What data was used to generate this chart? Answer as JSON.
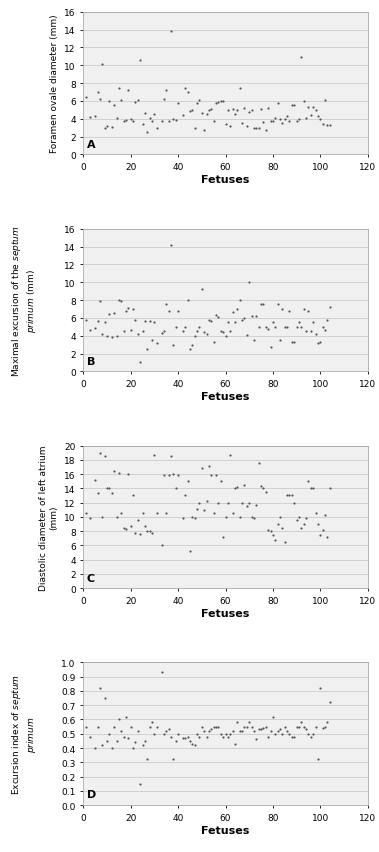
{
  "panel_A": {
    "xlabel": "Fetuses",
    "ylabel_parts": [
      [
        "Foramen ovale diameter (mm)",
        "normal"
      ]
    ],
    "label": "A",
    "xlim": [
      0,
      120
    ],
    "ylim": [
      0,
      16
    ],
    "yticks": [
      0,
      2,
      4,
      6,
      8,
      10,
      12,
      14,
      16
    ],
    "xticks": [
      0,
      20,
      40,
      60,
      80,
      100,
      120
    ],
    "x": [
      1,
      3,
      5,
      6,
      7,
      8,
      9,
      10,
      11,
      12,
      13,
      14,
      15,
      16,
      17,
      18,
      19,
      20,
      21,
      22,
      23,
      24,
      25,
      26,
      27,
      28,
      29,
      30,
      31,
      33,
      34,
      35,
      36,
      37,
      38,
      39,
      40,
      42,
      43,
      44,
      45,
      46,
      47,
      48,
      49,
      50,
      51,
      52,
      53,
      54,
      55,
      56,
      57,
      58,
      59,
      60,
      61,
      62,
      63,
      64,
      65,
      66,
      67,
      68,
      69,
      70,
      71,
      72,
      73,
      74,
      75,
      76,
      77,
      78,
      79,
      80,
      81,
      82,
      83,
      84,
      85,
      86,
      87,
      88,
      89,
      90,
      91,
      92,
      93,
      94,
      95,
      96,
      97,
      98,
      99,
      100,
      101,
      102,
      103,
      104
    ],
    "y": [
      6.5,
      4.2,
      4.3,
      7.0,
      6.2,
      10.1,
      3.0,
      3.2,
      6.0,
      3.1,
      5.6,
      4.1,
      7.5,
      6.1,
      3.8,
      3.9,
      7.2,
      4.0,
      3.7,
      5.9,
      6.1,
      10.6,
      3.4,
      4.6,
      2.5,
      4.1,
      3.8,
      4.5,
      3.0,
      3.8,
      6.2,
      7.2,
      3.8,
      13.8,
      4.0,
      3.9,
      5.8,
      4.4,
      7.5,
      7.0,
      4.9,
      5.0,
      3.0,
      5.8,
      6.1,
      4.7,
      2.7,
      4.5,
      5.0,
      5.1,
      3.8,
      5.8,
      5.9,
      6.0,
      6.0,
      3.4,
      5.0,
      3.2,
      5.1,
      4.5,
      5.0,
      7.4,
      3.5,
      5.2,
      3.2,
      4.8,
      5.0,
      3.0,
      3.0,
      3.0,
      5.1,
      3.6,
      2.8,
      5.2,
      3.8,
      3.8,
      4.1,
      5.8,
      4.0,
      3.5,
      4.0,
      4.3,
      3.8,
      5.5,
      5.6,
      3.8,
      4.0,
      10.9,
      6.0,
      4.1,
      5.3,
      4.4,
      5.3,
      5.0,
      4.3,
      4.0,
      3.4,
      6.1,
      3.3,
      3.3
    ]
  },
  "panel_B": {
    "xlabel": "Fetuses",
    "ylabel_parts": [
      [
        "Maximal excursion of the ",
        "normal"
      ],
      [
        "septum",
        "italic"
      ],
      [
        "\n",
        "normal"
      ],
      [
        "primum",
        "italic"
      ],
      [
        " (mm)",
        "normal"
      ]
    ],
    "label": "B",
    "xlim": [
      0,
      120
    ],
    "ylim": [
      0,
      16
    ],
    "yticks": [
      0,
      2,
      4,
      6,
      8,
      10,
      12,
      14,
      16
    ],
    "xticks": [
      0,
      20,
      40,
      60,
      80,
      100,
      120
    ],
    "x": [
      1,
      3,
      5,
      6,
      7,
      8,
      9,
      10,
      11,
      12,
      13,
      14,
      15,
      16,
      17,
      18,
      19,
      20,
      21,
      22,
      23,
      24,
      25,
      26,
      27,
      28,
      29,
      30,
      31,
      33,
      34,
      35,
      36,
      37,
      38,
      39,
      40,
      42,
      43,
      44,
      45,
      46,
      47,
      48,
      49,
      50,
      51,
      52,
      53,
      54,
      55,
      56,
      57,
      58,
      59,
      60,
      61,
      62,
      63,
      64,
      65,
      66,
      67,
      68,
      69,
      70,
      71,
      72,
      73,
      74,
      75,
      76,
      77,
      78,
      79,
      80,
      81,
      82,
      83,
      84,
      85,
      86,
      87,
      88,
      89,
      90,
      91,
      92,
      93,
      94,
      95,
      96,
      97,
      98,
      99,
      100,
      101,
      102,
      103,
      104
    ],
    "y": [
      5.8,
      4.6,
      4.9,
      5.6,
      7.9,
      4.2,
      5.5,
      4.0,
      6.4,
      3.8,
      6.5,
      4.0,
      8.0,
      7.9,
      4.5,
      6.8,
      7.1,
      4.6,
      7.0,
      5.8,
      4.2,
      1.0,
      4.5,
      5.6,
      2.5,
      5.7,
      3.5,
      5.5,
      3.2,
      4.3,
      4.5,
      7.5,
      6.8,
      14.2,
      3.0,
      5.0,
      6.8,
      4.5,
      5.0,
      8.0,
      2.5,
      3.0,
      4.0,
      4.5,
      5.0,
      9.2,
      4.4,
      4.2,
      5.8,
      5.6,
      3.3,
      6.3,
      6.1,
      4.5,
      4.4,
      4.0,
      5.5,
      4.5,
      6.7,
      5.5,
      7.0,
      8.0,
      5.8,
      6.0,
      4.1,
      10.0,
      6.2,
      3.5,
      6.2,
      5.0,
      7.6,
      7.5,
      5.0,
      4.8,
      2.7,
      5.5,
      5.0,
      7.5,
      3.5,
      7.0,
      5.0,
      5.0,
      6.8,
      3.3,
      3.3,
      5.0,
      5.5,
      5.0,
      7.0,
      4.5,
      6.8,
      4.5,
      5.5,
      4.2,
      3.2,
      3.3,
      5.0,
      4.6,
      5.8,
      7.2
    ]
  },
  "panel_C": {
    "xlabel": "Fetuses",
    "ylabel_parts": [
      [
        "Diastolic diameter of left atrium\n(mm)",
        "normal"
      ]
    ],
    "label": "C",
    "xlim": [
      0,
      120
    ],
    "ylim": [
      0,
      20
    ],
    "yticks": [
      0,
      2,
      4,
      6,
      8,
      10,
      12,
      14,
      16,
      18,
      20
    ],
    "xticks": [
      0,
      20,
      40,
      60,
      80,
      100,
      120
    ],
    "x": [
      1,
      3,
      5,
      6,
      7,
      8,
      9,
      10,
      11,
      12,
      13,
      14,
      15,
      16,
      17,
      18,
      19,
      20,
      21,
      22,
      23,
      24,
      25,
      26,
      27,
      28,
      29,
      30,
      31,
      33,
      34,
      35,
      36,
      37,
      38,
      39,
      40,
      42,
      43,
      44,
      45,
      46,
      47,
      48,
      49,
      50,
      51,
      52,
      53,
      54,
      55,
      56,
      57,
      58,
      59,
      60,
      61,
      62,
      63,
      64,
      65,
      66,
      67,
      68,
      69,
      70,
      71,
      72,
      73,
      74,
      75,
      76,
      77,
      78,
      79,
      80,
      81,
      82,
      83,
      84,
      85,
      86,
      87,
      88,
      89,
      90,
      91,
      92,
      93,
      94,
      95,
      96,
      97,
      98,
      99,
      100,
      101,
      102,
      103,
      104
    ],
    "y": [
      10.5,
      9.9,
      15.1,
      13.4,
      19.0,
      10.0,
      18.5,
      14.1,
      14.0,
      13.3,
      16.5,
      10.0,
      16.2,
      10.5,
      8.5,
      8.3,
      16.0,
      8.7,
      13.0,
      7.8,
      9.5,
      7.6,
      10.6,
      8.7,
      8.0,
      8.0,
      7.8,
      18.7,
      10.5,
      6.0,
      15.8,
      10.5,
      15.8,
      18.5,
      16.0,
      14.0,
      15.8,
      9.9,
      13.0,
      15.0,
      5.2,
      10.0,
      9.9,
      11.1,
      12.0,
      16.8,
      11.0,
      12.2,
      17.2,
      15.8,
      10.5,
      15.8,
      12.0,
      15.0,
      7.2,
      10.0,
      12.0,
      18.7,
      10.5,
      14.0,
      14.2,
      10.0,
      12.0,
      14.5,
      11.5,
      12.0,
      10.0,
      9.8,
      11.7,
      17.6,
      14.3,
      14.1,
      13.5,
      8.2,
      8.0,
      7.5,
      6.7,
      9.0,
      10.0,
      8.5,
      6.5,
      13.0,
      13.0,
      13.0,
      12.0,
      9.5,
      10.0,
      8.5,
      9.0,
      9.8,
      15.0,
      14.0,
      14.1,
      10.5,
      9.0,
      7.5,
      8.2,
      10.3,
      7.2,
      14.0
    ]
  },
  "panel_D": {
    "xlabel": "Fetuses",
    "ylabel_parts": [
      [
        "Excursion index of ",
        "normal"
      ],
      [
        "septum\n",
        "italic"
      ],
      [
        "primum",
        "italic"
      ]
    ],
    "label": "D",
    "xlim": [
      0,
      120
    ],
    "ylim": [
      0.0,
      1.0
    ],
    "yticks": [
      0.0,
      0.1,
      0.2,
      0.3,
      0.4,
      0.5,
      0.6,
      0.7,
      0.8,
      0.9,
      1.0
    ],
    "xticks": [
      0,
      20,
      40,
      60,
      80,
      100,
      120
    ],
    "x": [
      1,
      3,
      5,
      6,
      7,
      8,
      9,
      10,
      11,
      12,
      13,
      14,
      15,
      16,
      17,
      18,
      19,
      20,
      21,
      22,
      23,
      24,
      25,
      26,
      27,
      28,
      29,
      30,
      31,
      33,
      34,
      35,
      36,
      37,
      38,
      39,
      40,
      42,
      43,
      44,
      45,
      46,
      47,
      48,
      49,
      50,
      51,
      52,
      53,
      54,
      55,
      56,
      57,
      58,
      59,
      60,
      61,
      62,
      63,
      64,
      65,
      66,
      67,
      68,
      69,
      70,
      71,
      72,
      73,
      74,
      75,
      76,
      77,
      78,
      79,
      80,
      81,
      82,
      83,
      84,
      85,
      86,
      87,
      88,
      89,
      90,
      91,
      92,
      93,
      94,
      95,
      96,
      97,
      98,
      99,
      100,
      101,
      102,
      103,
      104
    ],
    "y": [
      0.55,
      0.48,
      0.4,
      0.55,
      0.82,
      0.42,
      0.75,
      0.45,
      0.5,
      0.4,
      0.55,
      0.45,
      0.6,
      0.52,
      0.48,
      0.62,
      0.47,
      0.55,
      0.4,
      0.44,
      0.52,
      0.15,
      0.42,
      0.45,
      0.32,
      0.55,
      0.58,
      0.5,
      0.55,
      0.93,
      0.5,
      0.52,
      0.53,
      0.48,
      0.32,
      0.45,
      0.5,
      0.47,
      0.47,
      0.48,
      0.45,
      0.43,
      0.42,
      0.5,
      0.48,
      0.55,
      0.52,
      0.48,
      0.52,
      0.53,
      0.55,
      0.55,
      0.55,
      0.5,
      0.48,
      0.5,
      0.48,
      0.5,
      0.52,
      0.43,
      0.58,
      0.52,
      0.52,
      0.55,
      0.55,
      0.58,
      0.55,
      0.52,
      0.46,
      0.53,
      0.53,
      0.54,
      0.55,
      0.48,
      0.52,
      0.62,
      0.5,
      0.52,
      0.53,
      0.5,
      0.55,
      0.52,
      0.5,
      0.48,
      0.48,
      0.55,
      0.55,
      0.58,
      0.55,
      0.53,
      0.5,
      0.48,
      0.5,
      0.55,
      0.32,
      0.82,
      0.54,
      0.55,
      0.58,
      0.72
    ]
  },
  "marker_size": 10,
  "marker_color": "#555555",
  "grid_color": "#cccccc",
  "plot_bg": "#f0f0f0",
  "fig_bg": "#ffffff",
  "tick_fontsize": 6.5,
  "xlabel_fontsize": 8,
  "ylabel_fontsize": 6.5,
  "label_fontsize": 8
}
